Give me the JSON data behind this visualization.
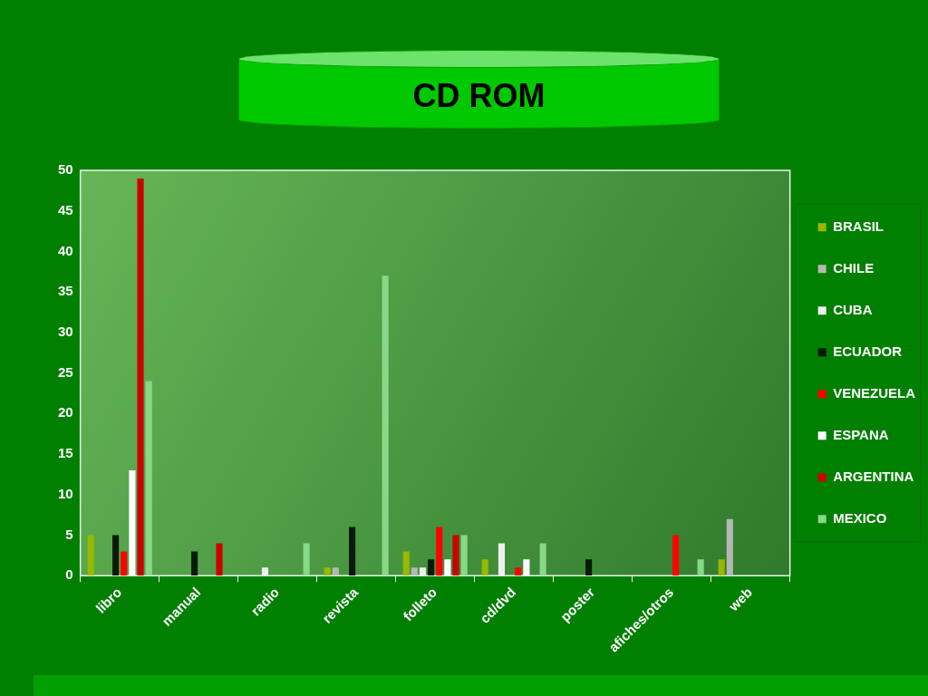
{
  "chart_data": {
    "type": "bar",
    "title": "CD ROM",
    "categories": [
      "libro",
      "manual",
      "radio",
      "revista",
      "folleto",
      "cd/dvd",
      "poster",
      "afiches/otros",
      "web"
    ],
    "series": [
      {
        "name": "BRASIL",
        "color": "#99b800",
        "values": [
          5,
          null,
          null,
          1,
          3,
          2,
          null,
          null,
          2
        ]
      },
      {
        "name": "CHILE",
        "color": "#b4b8b4",
        "values": [
          null,
          null,
          null,
          1,
          1,
          null,
          null,
          null,
          7
        ]
      },
      {
        "name": "CUBA",
        "color": "#eef0ee",
        "values": [
          null,
          null,
          1,
          null,
          1,
          4,
          null,
          null,
          null
        ]
      },
      {
        "name": "ECUADOR",
        "color": "#0a1a0a",
        "values": [
          5,
          3,
          null,
          6,
          2,
          null,
          2,
          null,
          null
        ]
      },
      {
        "name": "VENEZUELA",
        "color": "#ff0000",
        "values": [
          3,
          null,
          null,
          null,
          6,
          1,
          null,
          5,
          null
        ]
      },
      {
        "name": "ESPANA",
        "color": "#ffffff",
        "values": [
          13,
          null,
          null,
          null,
          2,
          2,
          null,
          null,
          null
        ]
      },
      {
        "name": "ARGENTINA",
        "color": "#cc0000",
        "values": [
          49,
          4,
          null,
          null,
          5,
          null,
          null,
          null,
          null
        ]
      },
      {
        "name": "MEXICO",
        "color": "#88d888",
        "values": [
          24,
          null,
          4,
          37,
          5,
          4,
          null,
          2,
          null
        ]
      }
    ],
    "ylim": [
      0,
      50
    ],
    "yticks": [
      0,
      5,
      10,
      15,
      20,
      25,
      30,
      35,
      40,
      45,
      50
    ],
    "grid": false,
    "legend": "right"
  }
}
